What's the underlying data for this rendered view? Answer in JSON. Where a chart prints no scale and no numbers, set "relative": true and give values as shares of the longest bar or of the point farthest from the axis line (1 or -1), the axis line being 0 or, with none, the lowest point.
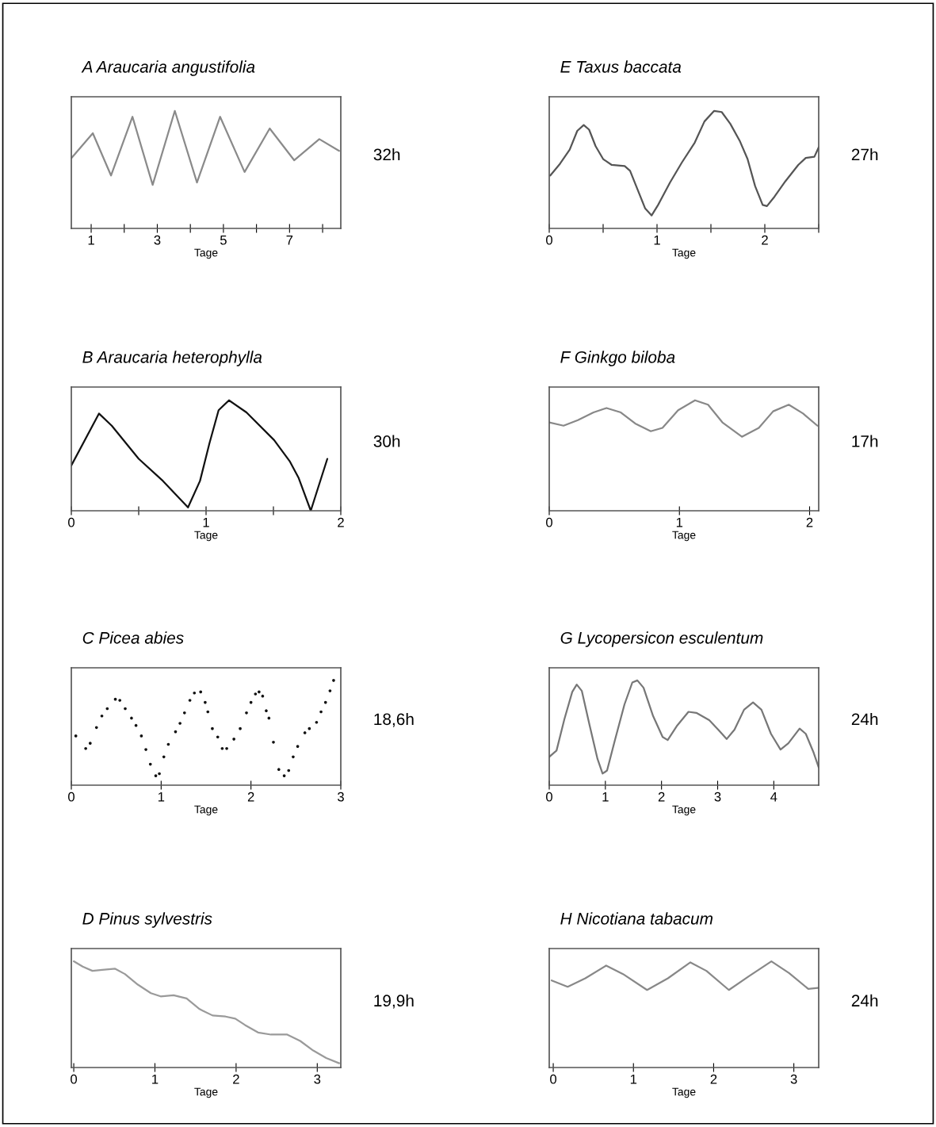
{
  "chart_data": [
    {
      "type": "line",
      "title": "A Araucaria angustifolia",
      "xlabel": "Tage",
      "relative": true,
      "tick_labels": "x",
      "color": "#8a8a8a",
      "xlim": [
        0.4,
        8.55
      ],
      "xticks": [
        1,
        {
          "value": 2,
          "label": null
        },
        3,
        {
          "value": 4,
          "label": null
        },
        5,
        {
          "value": 6,
          "label": null
        },
        7,
        {
          "value": 8,
          "label": null
        }
      ],
      "x": [
        0.41,
        1.05,
        1.6,
        2.25,
        2.86,
        3.53,
        4.2,
        4.9,
        5.64,
        6.4,
        7.14,
        7.9,
        8.5
      ],
      "values": [
        0.6,
        0.81,
        0.45,
        0.95,
        0.37,
        1.0,
        0.39,
        0.95,
        0.48,
        0.85,
        0.58,
        0.76,
        0.66
      ],
      "annotations": [
        "32h"
      ]
    },
    {
      "type": "line",
      "title": "B Araucaria heterophylla",
      "xlabel": "Tage",
      "relative": true,
      "tick_labels": "x",
      "color": "#111111",
      "xlim": [
        0,
        2
      ],
      "xticks": [
        0,
        {
          "value": 0.5,
          "label": null
        },
        1,
        {
          "value": 1.5,
          "label": null
        },
        2
      ],
      "x": [
        0.0,
        0.205,
        0.3,
        0.5,
        0.68,
        0.866,
        0.955,
        1.025,
        1.093,
        1.17,
        1.3,
        1.505,
        1.62,
        1.686,
        1.777,
        1.9
      ],
      "values": [
        0.41,
        0.88,
        0.77,
        0.47,
        0.27,
        0.03,
        0.27,
        0.61,
        0.91,
        1.0,
        0.89,
        0.64,
        0.45,
        0.3,
        0.0,
        0.47
      ],
      "annotations": [
        "30h"
      ]
    },
    {
      "type": "scatter",
      "title": "C Picea abies",
      "xlabel": "Tage",
      "relative": true,
      "tick_labels": "x",
      "color": "#111111",
      "xlim": [
        0,
        3
      ],
      "xticks": [
        0,
        1,
        2,
        3
      ],
      "x": [
        0.05,
        0.16,
        0.21,
        0.28,
        0.34,
        0.4,
        0.49,
        0.54,
        0.6,
        0.67,
        0.72,
        0.78,
        0.83,
        0.88,
        0.94,
        0.98,
        1.03,
        1.08,
        1.16,
        1.21,
        1.26,
        1.32,
        1.37,
        1.44,
        1.49,
        1.52,
        1.57,
        1.63,
        1.68,
        1.73,
        1.81,
        1.88,
        1.95,
        2.0,
        2.05,
        2.09,
        2.13,
        2.17,
        2.2,
        2.25,
        2.31,
        2.37,
        2.42,
        2.47,
        2.52,
        2.6,
        2.65,
        2.73,
        2.78,
        2.83,
        2.88,
        2.92
      ],
      "values": [
        0.47,
        0.35,
        0.4,
        0.55,
        0.66,
        0.73,
        0.82,
        0.81,
        0.73,
        0.64,
        0.57,
        0.47,
        0.34,
        0.2,
        0.09,
        0.11,
        0.27,
        0.39,
        0.51,
        0.59,
        0.69,
        0.81,
        0.88,
        0.89,
        0.79,
        0.7,
        0.54,
        0.46,
        0.35,
        0.35,
        0.44,
        0.54,
        0.69,
        0.79,
        0.87,
        0.89,
        0.85,
        0.71,
        0.64,
        0.41,
        0.15,
        0.09,
        0.14,
        0.27,
        0.37,
        0.5,
        0.54,
        0.6,
        0.7,
        0.79,
        0.9,
        1.0
      ],
      "annotations": [
        "18,6h"
      ]
    },
    {
      "type": "line",
      "title": "D Pinus sylvestris",
      "xlabel": "Tage",
      "relative": true,
      "tick_labels": "x",
      "color": "#9a9a9a",
      "xlim": [
        -0.03,
        3.29
      ],
      "xticks": [
        0,
        1,
        2,
        3
      ],
      "x": [
        0.0,
        0.11,
        0.23,
        0.35,
        0.51,
        0.63,
        0.79,
        0.95,
        1.07,
        1.23,
        1.39,
        1.55,
        1.71,
        1.87,
        1.99,
        2.11,
        2.27,
        2.43,
        2.63,
        2.79,
        2.95,
        3.11,
        3.27
      ],
      "values": [
        1.0,
        0.95,
        0.91,
        0.92,
        0.93,
        0.88,
        0.78,
        0.7,
        0.67,
        0.68,
        0.65,
        0.55,
        0.49,
        0.48,
        0.46,
        0.4,
        0.33,
        0.31,
        0.31,
        0.25,
        0.16,
        0.09,
        0.04
      ],
      "annotations": [
        "19,9h"
      ]
    },
    {
      "type": "line",
      "title": "E Taxus baccata",
      "xlabel": "Tage",
      "relative": true,
      "tick_labels": "x",
      "color": "#555555",
      "xlim": [
        0,
        2.5
      ],
      "xticks": [
        0,
        {
          "value": 0.5,
          "label": null
        },
        1,
        {
          "value": 1.5,
          "label": null
        },
        2,
        {
          "value": 2.5,
          "label": null
        }
      ],
      "x": [
        0.01,
        0.1,
        0.19,
        0.26,
        0.32,
        0.37,
        0.43,
        0.5,
        0.58,
        0.7,
        0.75,
        0.82,
        0.89,
        0.95,
        1.01,
        1.12,
        1.23,
        1.35,
        1.44,
        1.53,
        1.6,
        1.68,
        1.77,
        1.84,
        1.91,
        1.98,
        2.02,
        2.09,
        2.19,
        2.31,
        2.38,
        2.46,
        2.5
      ],
      "values": [
        0.45,
        0.55,
        0.67,
        0.83,
        0.88,
        0.84,
        0.7,
        0.59,
        0.54,
        0.53,
        0.49,
        0.33,
        0.17,
        0.11,
        0.2,
        0.39,
        0.56,
        0.73,
        0.91,
        1.0,
        0.99,
        0.89,
        0.74,
        0.59,
        0.36,
        0.2,
        0.19,
        0.27,
        0.4,
        0.54,
        0.6,
        0.61,
        0.69
      ],
      "annotations": [
        "27h"
      ]
    },
    {
      "type": "line",
      "title": "F Ginkgo biloba",
      "xlabel": "Tage",
      "relative": true,
      "tick_labels": "x",
      "color": "#888888",
      "xlim": [
        0,
        2.07
      ],
      "xticks": [
        0,
        1,
        2
      ],
      "x": [
        0.0,
        0.11,
        0.22,
        0.34,
        0.44,
        0.55,
        0.66,
        0.78,
        0.87,
        0.99,
        1.12,
        1.22,
        1.33,
        1.48,
        1.61,
        1.72,
        1.84,
        1.95,
        2.06
      ],
      "values": [
        0.8,
        0.77,
        0.82,
        0.89,
        0.93,
        0.89,
        0.79,
        0.72,
        0.75,
        0.91,
        1.0,
        0.96,
        0.8,
        0.67,
        0.75,
        0.9,
        0.96,
        0.88,
        0.77
      ],
      "annotations": [
        "17h"
      ]
    },
    {
      "type": "line",
      "title": "G Lycopersicon esculentum",
      "xlabel": "Tage",
      "relative": true,
      "tick_labels": "x",
      "color": "#777777",
      "xlim": [
        0,
        4.8
      ],
      "xticks": [
        0,
        1,
        2,
        3,
        4
      ],
      "x": [
        0.0,
        0.13,
        0.27,
        0.41,
        0.49,
        0.58,
        0.72,
        0.86,
        0.95,
        1.03,
        1.17,
        1.34,
        1.48,
        1.57,
        1.68,
        1.85,
        2.02,
        2.11,
        2.28,
        2.48,
        2.62,
        2.85,
        3.01,
        3.16,
        3.3,
        3.47,
        3.63,
        3.78,
        3.95,
        4.12,
        4.26,
        4.46,
        4.57,
        4.71,
        4.8
      ],
      "values": [
        0.27,
        0.33,
        0.63,
        0.89,
        0.96,
        0.9,
        0.57,
        0.25,
        0.11,
        0.14,
        0.43,
        0.77,
        0.98,
        1.0,
        0.93,
        0.66,
        0.46,
        0.43,
        0.57,
        0.7,
        0.69,
        0.62,
        0.53,
        0.44,
        0.53,
        0.72,
        0.79,
        0.72,
        0.49,
        0.34,
        0.4,
        0.54,
        0.49,
        0.31,
        0.17
      ],
      "annotations": [
        "24h"
      ]
    },
    {
      "type": "line",
      "title": "H Nicotiana tabacum",
      "xlabel": "Tage",
      "relative": true,
      "tick_labels": "x",
      "color": "#888888",
      "xlim": [
        -0.05,
        3.31
      ],
      "xticks": [
        0,
        1,
        2,
        3
      ],
      "x": [
        -0.02,
        0.18,
        0.4,
        0.66,
        0.87,
        1.17,
        1.43,
        1.71,
        1.91,
        2.19,
        2.44,
        2.72,
        2.94,
        3.18,
        3.3
      ],
      "values": [
        0.82,
        0.76,
        0.84,
        0.96,
        0.88,
        0.73,
        0.84,
        0.99,
        0.91,
        0.73,
        0.86,
        1.0,
        0.89,
        0.74,
        0.75
      ],
      "annotations": [
        "24h"
      ]
    }
  ]
}
